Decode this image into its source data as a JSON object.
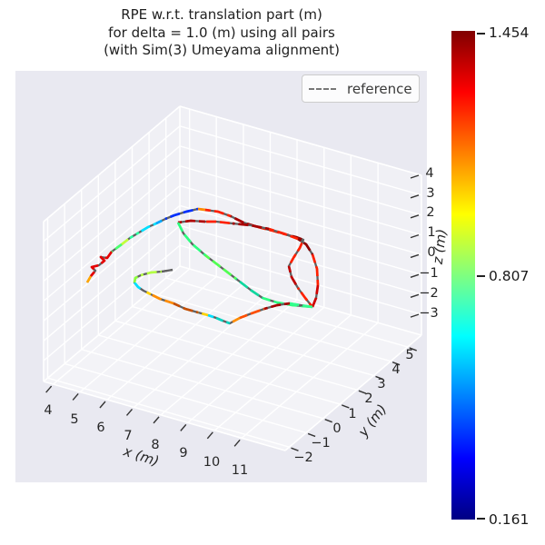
{
  "figure": {
    "background": "#ffffff",
    "plot_bg": "#e9e9f1",
    "wall_color": "#f0f0f5",
    "floor_color": "#f3f3f7",
    "grid_color": "#ffffff",
    "tick_color": "#343434",
    "text_color": "#262626"
  },
  "title": {
    "lines": [
      "RPE w.r.t. translation part (m)",
      "for delta = 1.0 (m) using all pairs",
      "(with Sim(3) Umeyama alignment)"
    ]
  },
  "legend": {
    "label": "reference",
    "line_color": "#777777",
    "line_style": "dashed"
  },
  "axes": {
    "x": {
      "label": "x (m)",
      "tick_labels": [
        "4",
        "5",
        "6",
        "7",
        "8",
        "9",
        "10",
        "11"
      ]
    },
    "y": {
      "label": "y (m)",
      "tick_labels": [
        "−2",
        "−1",
        "0",
        "1",
        "2",
        "3",
        "4",
        "5"
      ]
    },
    "z": {
      "label": "z (m)",
      "tick_labels": [
        "−3",
        "−2",
        "−1",
        "0",
        "1",
        "2",
        "3",
        "4"
      ]
    }
  },
  "colorbar": {
    "colormap": "jet",
    "labels": {
      "max": "1.454",
      "mid": "0.807",
      "min": "0.161"
    }
  },
  "chart_data": {
    "type": "line",
    "subtype": "3d-trajectory",
    "title": "RPE w.r.t. translation part (m) for delta = 1.0 (m) using all pairs (with Sim(3) Umeyama alignment)",
    "xlabel": "x (m)",
    "ylabel": "y (m)",
    "zlabel": "z (m)",
    "xlim": [
      3.5,
      12.5
    ],
    "ylim": [
      -2.5,
      5.5
    ],
    "zlim": [
      -3.5,
      4.5
    ],
    "x_ticks": [
      4,
      5,
      6,
      7,
      8,
      9,
      10,
      11
    ],
    "y_ticks": [
      -2,
      -1,
      0,
      1,
      2,
      3,
      4,
      5
    ],
    "z_ticks": [
      -3,
      -2,
      -1,
      0,
      1,
      2,
      3,
      4
    ],
    "legend": [
      "reference"
    ],
    "colorbar": {
      "min": 0.161,
      "mid": 0.807,
      "max": 1.454,
      "colormap": "jet",
      "meaning": "RPE w.r.t. translation part (m)"
    },
    "series": [
      {
        "name": "trajectory colored by RPE",
        "render": "screen_polylines"
      },
      {
        "name": "reference",
        "render": "dashed gray underlay"
      }
    ],
    "paths": [
      {
        "name": "left-arm",
        "segments": [
          {
            "c": "#ffa600",
            "p": [
              [
                96,
                311
              ],
              [
                100,
                304
              ]
            ]
          },
          {
            "c": "#e60000",
            "p": [
              [
                100,
                304
              ],
              [
                105,
                298
              ],
              [
                101,
                294
              ],
              [
                109,
                292
              ],
              [
                115,
                287
              ],
              [
                111,
                283
              ],
              [
                118,
                284
              ],
              [
                123,
                277
              ]
            ]
          },
          {
            "c": "#49ff6e",
            "p": [
              [
                123,
                277
              ],
              [
                134,
                269
              ]
            ]
          },
          {
            "c": "#c3ff3a",
            "p": [
              [
                134,
                269
              ],
              [
                143,
                262
              ]
            ]
          },
          {
            "c": "#2bffa0",
            "p": [
              [
                143,
                262
              ],
              [
                153,
                256
              ]
            ]
          },
          {
            "c": "#00e0ff",
            "p": [
              [
                153,
                256
              ],
              [
                163,
                250
              ],
              [
                172,
                246
              ]
            ]
          },
          {
            "c": "#00a8ff",
            "p": [
              [
                172,
                246
              ],
              [
                182,
                241
              ]
            ]
          },
          {
            "c": "#0030ff",
            "p": [
              [
                182,
                241
              ],
              [
                192,
                237
              ],
              [
                205,
                233
              ],
              [
                218,
                230
              ]
            ]
          }
        ]
      },
      {
        "name": "top-arc",
        "segments": [
          {
            "c": "#ff8c00",
            "p": [
              [
                218,
                230
              ],
              [
                226,
                231
              ]
            ]
          },
          {
            "c": "#ff2000",
            "p": [
              [
                226,
                231
              ],
              [
                240,
                233
              ],
              [
                254,
                238
              ]
            ]
          },
          {
            "c": "#a80000",
            "p": [
              [
                254,
                238
              ],
              [
                268,
                245
              ],
              [
                284,
                250
              ]
            ]
          },
          {
            "c": "#ff2000",
            "p": [
              [
                284,
                250
              ],
              [
                300,
                254
              ],
              [
                314,
                258
              ]
            ]
          },
          {
            "c": "#8f0000",
            "p": [
              [
                314,
                258
              ],
              [
                326,
                261
              ],
              [
                334,
                264
              ]
            ]
          },
          {
            "c": "#ff2000",
            "p": [
              [
                334,
                264
              ],
              [
                330,
                273
              ],
              [
                323,
                284
              ],
              [
                318,
                293
              ]
            ]
          },
          {
            "c": "#c00000",
            "p": [
              [
                318,
                293
              ],
              [
                321,
                305
              ],
              [
                328,
                317
              ]
            ]
          },
          {
            "c": "#ff2000",
            "p": [
              [
                328,
                317
              ],
              [
                336,
                328
              ],
              [
                344,
                338
              ]
            ]
          }
        ]
      },
      {
        "name": "right-loop",
        "segments": [
          {
            "c": "#d00000",
            "p": [
              [
                344,
                338
              ],
              [
                348,
                328
              ],
              [
                350,
                314
              ]
            ]
          },
          {
            "c": "#ff2000",
            "p": [
              [
                350,
                314
              ],
              [
                349,
                296
              ],
              [
                344,
                280
              ]
            ]
          },
          {
            "c": "#900000",
            "p": [
              [
                344,
                280
              ],
              [
                337,
                269
              ],
              [
                328,
                263
              ]
            ]
          },
          {
            "c": "#ff2000",
            "p": [
              [
                328,
                263
              ],
              [
                312,
                257
              ],
              [
                296,
                252
              ]
            ]
          },
          {
            "c": "#a80000",
            "p": [
              [
                296,
                252
              ],
              [
                276,
                248
              ],
              [
                256,
                246
              ]
            ]
          },
          {
            "c": "#ff2000",
            "p": [
              [
                256,
                246
              ],
              [
                238,
                244
              ],
              [
                226,
                244
              ]
            ]
          },
          {
            "c": "#b00000",
            "p": [
              [
                226,
                244
              ],
              [
                210,
                243
              ],
              [
                196,
                245
              ]
            ]
          }
        ]
      },
      {
        "name": "green-diagonal",
        "segments": [
          {
            "c": "#2cff80",
            "p": [
              [
                196,
                245
              ],
              [
                202,
                257
              ],
              [
                212,
                269
              ],
              [
                226,
                281
              ]
            ]
          },
          {
            "c": "#51ff51",
            "p": [
              [
                226,
                281
              ],
              [
                243,
                294
              ],
              [
                260,
                307
              ]
            ]
          },
          {
            "c": "#0fd8a0",
            "p": [
              [
                260,
                307
              ],
              [
                277,
                320
              ],
              [
                289,
                328
              ]
            ]
          },
          {
            "c": "#2cff80",
            "p": [
              [
                289,
                328
              ],
              [
                305,
                333
              ],
              [
                322,
                336
              ],
              [
                344,
                338
              ]
            ]
          }
        ]
      },
      {
        "name": "bottom-arm",
        "segments": [
          {
            "c": "#31ff8f",
            "p": [
              [
                344,
                338
              ],
              [
                331,
                336
              ],
              [
                319,
                334
              ]
            ]
          },
          {
            "c": "#a80000",
            "p": [
              [
                319,
                334
              ],
              [
                305,
                336
              ],
              [
                291,
                340
              ]
            ]
          },
          {
            "c": "#ff4e00",
            "p": [
              [
                291,
                340
              ],
              [
                277,
                345
              ],
              [
                264,
                350
              ]
            ]
          },
          {
            "c": "#ff8c00",
            "p": [
              [
                264,
                350
              ],
              [
                253,
                356
              ]
            ]
          },
          {
            "c": "#00d4c0",
            "p": [
              [
                253,
                356
              ],
              [
                245,
                353
              ],
              [
                238,
                350
              ]
            ]
          },
          {
            "c": "#00e0ff",
            "p": [
              [
                238,
                350
              ],
              [
                229,
                347
              ]
            ]
          },
          {
            "c": "#ffd300",
            "p": [
              [
                229,
                347
              ],
              [
                218,
                344
              ]
            ]
          },
          {
            "c": "#c44e00",
            "p": [
              [
                218,
                344
              ],
              [
                204,
                340
              ],
              [
                191,
                334
              ]
            ]
          },
          {
            "c": "#ff8c00",
            "p": [
              [
                191,
                334
              ],
              [
                176,
                329
              ],
              [
                166,
                324
              ]
            ]
          },
          {
            "c": "#ffd300",
            "p": [
              [
                166,
                324
              ],
              [
                158,
                320
              ]
            ]
          },
          {
            "c": "#00e0ff",
            "p": [
              [
                158,
                320
              ],
              [
                152,
                316
              ],
              [
                148,
                311
              ]
            ]
          },
          {
            "c": "#8cff3c",
            "p": [
              [
                148,
                311
              ],
              [
                149,
                306
              ],
              [
                155,
                303
              ]
            ]
          },
          {
            "c": "#b4ff43",
            "p": [
              [
                155,
                303
              ],
              [
                166,
                300
              ],
              [
                178,
                299
              ]
            ]
          },
          {
            "c": null,
            "p": [
              [
                178,
                299
              ],
              [
                190,
                297
              ]
            ]
          }
        ]
      }
    ]
  }
}
